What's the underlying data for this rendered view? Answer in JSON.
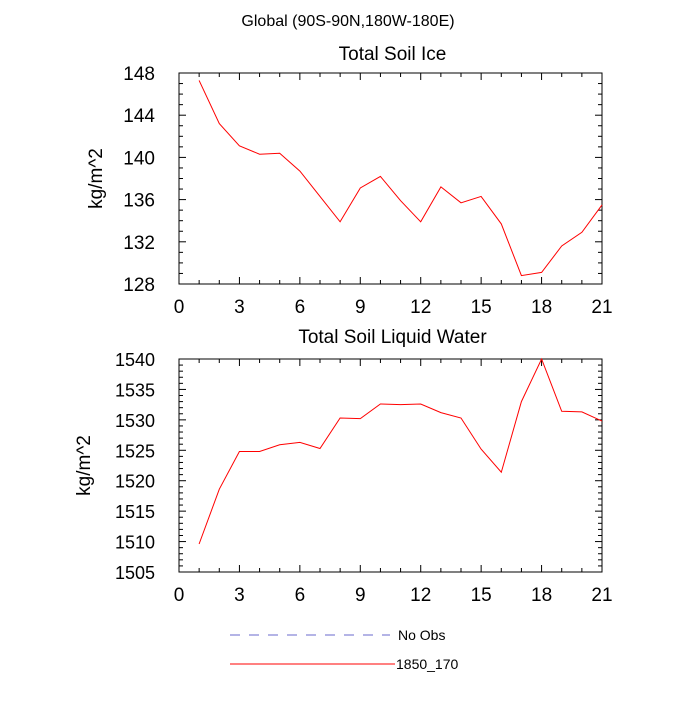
{
  "suptitle": "Global (90S-90N,180W-180E)",
  "legend": {
    "entries": [
      {
        "label": "No Obs",
        "color": "#6a6acd",
        "dash": "dashed"
      },
      {
        "label": "1850_170",
        "color": "#ff0000",
        "dash": "solid"
      }
    ]
  },
  "chart_data": [
    {
      "type": "line",
      "title": "Total Soil Ice",
      "xlabel": "",
      "ylabel": "kg/m^2",
      "xlim": [
        0,
        21
      ],
      "ylim": [
        128,
        148
      ],
      "xticks": [
        0,
        3,
        6,
        9,
        12,
        15,
        18,
        21
      ],
      "xtick_labels": [
        "0",
        "3",
        "6",
        "9",
        "12",
        "15",
        "18",
        "21"
      ],
      "yticks": [
        128,
        132,
        136,
        140,
        144,
        148
      ],
      "ytick_labels": [
        "128",
        "132",
        "136",
        "140",
        "144",
        "148"
      ],
      "series": [
        {
          "name": "1850_170",
          "color": "#ff0000",
          "x": [
            1,
            2,
            3,
            4,
            5,
            6,
            7,
            8,
            9,
            10,
            11,
            12,
            13,
            14,
            15,
            16,
            17,
            18,
            19,
            20,
            21
          ],
          "values": [
            147.3,
            143.2,
            141.1,
            140.3,
            140.4,
            138.7,
            136.3,
            133.9,
            137.1,
            138.2,
            135.9,
            133.9,
            137.2,
            135.7,
            136.3,
            133.7,
            128.8,
            129.1,
            131.6,
            132.9,
            135.5
          ]
        }
      ]
    },
    {
      "type": "line",
      "title": "Total Soil Liquid Water",
      "xlabel": "",
      "ylabel": "kg/m^2",
      "xlim": [
        0,
        21
      ],
      "ylim": [
        1505,
        1540
      ],
      "xticks": [
        0,
        3,
        6,
        9,
        12,
        15,
        18,
        21
      ],
      "xtick_labels": [
        "0",
        "3",
        "6",
        "9",
        "12",
        "15",
        "18",
        "21"
      ],
      "yticks": [
        1505,
        1510,
        1515,
        1520,
        1525,
        1530,
        1535,
        1540
      ],
      "ytick_labels": [
        "1505",
        "1510",
        "1515",
        "1520",
        "1525",
        "1530",
        "1535",
        "1540"
      ],
      "series": [
        {
          "name": "1850_170",
          "color": "#ff0000",
          "x": [
            1,
            2,
            3,
            4,
            5,
            6,
            7,
            8,
            9,
            10,
            11,
            12,
            13,
            14,
            15,
            16,
            17,
            18,
            19,
            20,
            21
          ],
          "values": [
            1509.6,
            1518.6,
            1524.8,
            1524.8,
            1525.9,
            1526.3,
            1525.3,
            1530.3,
            1530.2,
            1532.6,
            1532.5,
            1532.6,
            1531.2,
            1530.3,
            1525.2,
            1521.4,
            1533.0,
            1540.0,
            1531.4,
            1531.3,
            1529.8
          ]
        }
      ]
    }
  ]
}
